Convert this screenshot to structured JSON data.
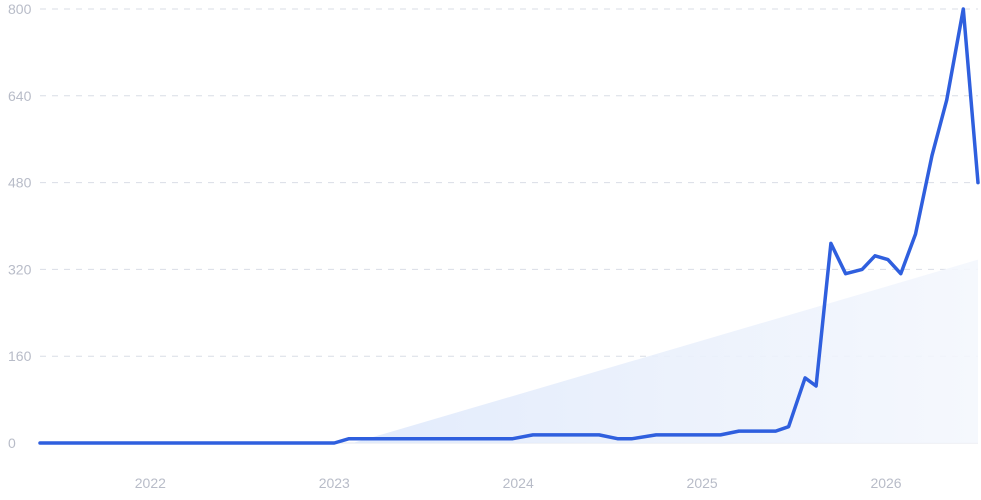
{
  "chart_data": {
    "type": "line",
    "title": "",
    "xlabel": "",
    "ylabel": "",
    "ylim": [
      0,
      800
    ],
    "y_ticks": [
      "0",
      "160",
      "320",
      "480",
      "640",
      "800"
    ],
    "y_tick_values": [
      0,
      160,
      320,
      480,
      640,
      800
    ],
    "x_ticks": [
      "2022",
      "2023",
      "2024",
      "2025",
      "2026"
    ],
    "x_tick_values": [
      2022.0,
      2023.0,
      2024.0,
      2025.0,
      2026.0
    ],
    "xlim": [
      2021.4,
      2026.5
    ],
    "grid": true,
    "legend": "none",
    "colors": {
      "line": "#2f5fde",
      "trend": "#e6effd",
      "grid": "#d9dde6",
      "axis": "#e3e6ec"
    },
    "series": [
      {
        "x": [
          2021.4,
          2021.6,
          2022.0,
          2022.5,
          2022.9,
          2023.0,
          2023.08,
          2023.5,
          2023.9,
          2023.97,
          2024.08,
          2024.3,
          2024.35,
          2024.44,
          2024.54,
          2024.62,
          2024.75,
          2024.9,
          2025.0,
          2025.1,
          2025.2,
          2025.3,
          2025.4,
          2025.47,
          2025.56,
          2025.62,
          2025.7,
          2025.78,
          2025.87,
          2025.94,
          2026.01,
          2026.08,
          2026.16,
          2026.25,
          2026.33,
          2026.42,
          2026.5
        ],
        "values": [
          0,
          0,
          0,
          0,
          0,
          0,
          8,
          8,
          8,
          8,
          15,
          15,
          15,
          15,
          8,
          8,
          15,
          15,
          15,
          15,
          22,
          22,
          22,
          30,
          120,
          105,
          368,
          312,
          320,
          345,
          338,
          312,
          385,
          530,
          632,
          800,
          480
        ]
      }
    ],
    "trend": {
      "x": [
        2023.1,
        2026.5
      ],
      "values": [
        0,
        338
      ]
    }
  }
}
